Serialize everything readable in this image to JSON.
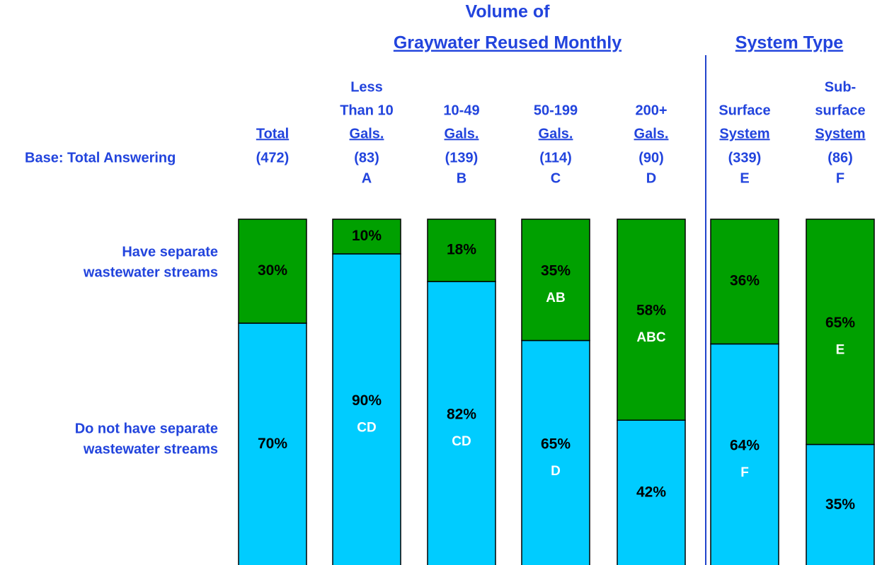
{
  "chart_data": {
    "type": "stacked_bar",
    "groups": [
      {
        "title": [
          "Volume of",
          "Graywater Reused Monthly"
        ]
      },
      {
        "title": [
          "System Type"
        ]
      }
    ],
    "base_label": "Base: Total Answering",
    "categories": [
      [
        "Total"
      ],
      [
        "Less",
        "Than 10",
        "Gals."
      ],
      [
        "10-49",
        "Gals."
      ],
      [
        "50-199",
        "Gals."
      ],
      [
        "200+",
        "Gals."
      ],
      [
        "Surface",
        "System"
      ],
      [
        "Sub-",
        "surface",
        "System"
      ]
    ],
    "bases": [
      "(472)",
      "(83)",
      "(139)",
      "(114)",
      "(90)",
      "(339)",
      "(86)"
    ],
    "column_letters": [
      null,
      "A",
      "B",
      "C",
      "D",
      "E",
      "F"
    ],
    "series": [
      {
        "name": [
          "Do not have separate",
          "wastewater streams"
        ],
        "color": "#00ccff",
        "values": [
          70,
          90,
          82,
          65,
          42,
          64,
          35
        ],
        "value_labels": [
          "70%",
          "90%",
          "82%",
          "65%",
          "42%",
          "64%",
          "35%"
        ],
        "significance": [
          null,
          "CD",
          "CD",
          "D",
          null,
          "F",
          null
        ]
      },
      {
        "name": [
          "Have separate",
          "wastewater streams"
        ],
        "color": "#00a000",
        "values": [
          30,
          10,
          18,
          35,
          58,
          36,
          65
        ],
        "value_labels": [
          "30%",
          "10%",
          "18%",
          "35%",
          "58%",
          "36%",
          "65%"
        ],
        "significance": [
          null,
          null,
          null,
          "AB",
          "ABC",
          null,
          "E"
        ]
      }
    ]
  }
}
